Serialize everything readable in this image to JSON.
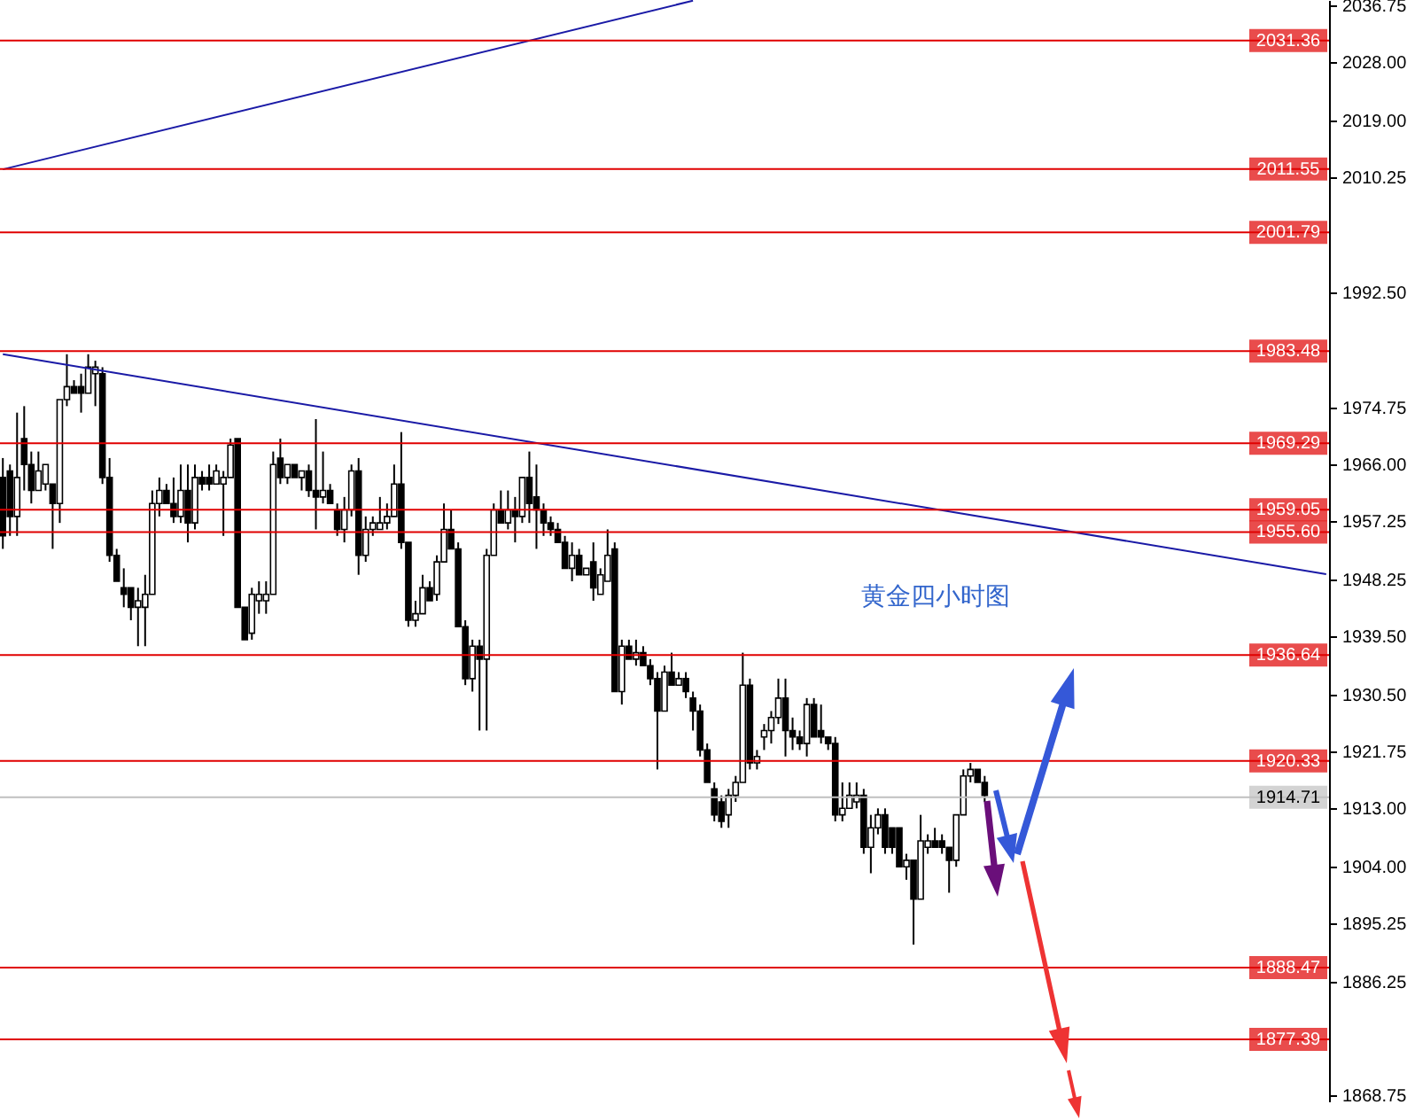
{
  "chart_data": {
    "type": "candlestick",
    "title": "黄金四小时图",
    "categories": [
      null,
      null,
      null,
      null,
      null,
      null,
      null,
      null,
      null,
      null,
      null,
      null,
      null,
      null,
      null,
      null,
      null,
      null,
      null,
      null,
      null,
      null,
      null,
      null,
      null,
      null,
      null,
      null,
      null,
      null,
      null,
      null,
      null,
      null,
      null,
      null,
      null,
      null,
      null,
      null,
      null,
      null,
      null,
      null,
      null,
      null,
      null,
      null,
      null,
      null,
      null,
      null,
      null,
      null,
      null,
      null,
      null,
      null,
      null,
      null,
      null,
      null,
      null,
      null,
      null,
      null,
      null,
      null,
      null,
      null,
      null,
      null,
      null,
      null,
      null,
      null,
      null,
      null,
      null,
      null,
      null,
      null,
      null,
      null,
      null,
      null,
      null,
      null,
      null,
      null,
      null,
      null,
      null,
      null,
      null,
      null,
      null,
      null,
      null,
      null,
      null,
      null,
      null,
      null,
      null,
      null,
      null,
      null,
      null,
      null,
      null,
      null,
      null,
      null,
      null,
      null,
      null,
      null,
      null,
      null,
      null,
      null,
      null,
      null,
      null,
      null,
      null,
      null,
      null,
      null,
      null,
      null,
      null,
      null,
      null,
      null,
      null,
      null,
      null,
      null,
      null,
      null,
      null,
      null,
      null,
      null,
      null,
      null,
      null,
      null,
      null,
      null,
      null,
      null,
      null,
      null,
      null,
      null,
      null,
      null,
      null,
      null,
      null,
      null,
      null,
      null,
      null,
      null,
      null,
      null,
      null,
      null,
      null,
      null,
      null,
      null,
      null,
      null,
      null,
      null,
      null,
      null,
      null,
      null,
      null,
      null,
      null
    ],
    "series": [
      {
        "type": "candlestick",
        "color": "#000000",
        "ohlc": [
          [
            1964,
            1967,
            1953,
            1955
          ],
          [
            1965,
            1966,
            1955,
            1958
          ],
          [
            1958,
            1974,
            1955,
            1964
          ],
          [
            1970,
            1975,
            1962,
            1966
          ],
          [
            1966,
            1968,
            1960,
            1962
          ],
          [
            1962,
            1968,
            1962,
            1965
          ],
          [
            1963,
            1966,
            1962,
            1966
          ],
          [
            1963,
            1963,
            1953,
            1960
          ],
          [
            1960,
            1976,
            1957,
            1976
          ],
          [
            1976,
            1983,
            1975,
            1978
          ],
          [
            1978,
            1979,
            1977,
            1977
          ],
          [
            1978,
            1980,
            1974,
            1977
          ],
          [
            1977,
            1983,
            1977,
            1981
          ],
          [
            1980,
            1982,
            1975,
            1981
          ],
          [
            1980,
            1981,
            1963,
            1964
          ],
          [
            1964,
            1967,
            1951,
            1952
          ],
          [
            1952,
            1953,
            1948,
            1948
          ],
          [
            1947,
            1950,
            1944,
            1946
          ],
          [
            1947,
            1947,
            1942,
            1944
          ],
          [
            1944,
            1947,
            1938,
            1945
          ],
          [
            1944,
            1949,
            1938,
            1946
          ],
          [
            1946,
            1962,
            1946,
            1960
          ],
          [
            1960,
            1964,
            1958,
            1962
          ],
          [
            1962,
            1963,
            1960,
            1960
          ],
          [
            1960,
            1964,
            1957,
            1958
          ],
          [
            1958,
            1966,
            1957,
            1962
          ],
          [
            1962,
            1966,
            1954,
            1957
          ],
          [
            1957,
            1966,
            1956,
            1964
          ],
          [
            1964,
            1965,
            1962,
            1963
          ],
          [
            1964,
            1966,
            1962,
            1963
          ],
          [
            1963,
            1966,
            1963,
            1965
          ],
          [
            1963,
            1965,
            1955,
            1964
          ],
          [
            1964,
            1970,
            1964,
            1969
          ],
          [
            1970,
            1970,
            1944,
            1944
          ],
          [
            1944,
            1944,
            1939,
            1939
          ],
          [
            1940,
            1947,
            1939,
            1946
          ],
          [
            1945,
            1948,
            1943,
            1946
          ],
          [
            1945,
            1948,
            1943,
            1946
          ],
          [
            1946,
            1968,
            1946,
            1966
          ],
          [
            1967,
            1970,
            1963,
            1964
          ],
          [
            1964,
            1966,
            1963,
            1966
          ],
          [
            1966,
            1966,
            1964,
            1964
          ],
          [
            1964,
            1965,
            1962,
            1965
          ],
          [
            1965,
            1966,
            1961,
            1962
          ],
          [
            1962,
            1973,
            1956,
            1961
          ],
          [
            1961,
            1968,
            1960,
            1962
          ],
          [
            1962,
            1963,
            1960,
            1960
          ],
          [
            1959,
            1960,
            1955,
            1956
          ],
          [
            1956,
            1961,
            1954,
            1959
          ],
          [
            1959,
            1966,
            1958,
            1965
          ],
          [
            1965,
            1967,
            1949,
            1952
          ],
          [
            1952,
            1958,
            1951,
            1956
          ],
          [
            1956,
            1958,
            1955,
            1957
          ],
          [
            1956,
            1961,
            1956,
            1957
          ],
          [
            1957,
            1960,
            1956,
            1958
          ],
          [
            1958,
            1966,
            1958,
            1963
          ],
          [
            1963,
            1971,
            1953,
            1954
          ],
          [
            1954,
            1954,
            1941,
            1942
          ],
          [
            1942,
            1945,
            1941,
            1943
          ],
          [
            1943,
            1949,
            1943,
            1947
          ],
          [
            1947,
            1948,
            1945,
            1945
          ],
          [
            1946,
            1952,
            1945,
            1951
          ],
          [
            1951,
            1960,
            1951,
            1956
          ],
          [
            1956,
            1959,
            1953,
            1953
          ],
          [
            1953,
            1954,
            1941,
            1941
          ],
          [
            1941,
            1942,
            1932,
            1933
          ],
          [
            1933,
            1939,
            1931,
            1938
          ],
          [
            1938,
            1939,
            1925,
            1936
          ],
          [
            1936,
            1953,
            1925,
            1952
          ],
          [
            1952,
            1960,
            1952,
            1959
          ],
          [
            1959,
            1962,
            1957,
            1957
          ],
          [
            1957,
            1962,
            1956,
            1959
          ],
          [
            1959,
            1961,
            1954,
            1958
          ],
          [
            1958,
            1964,
            1957,
            1964
          ],
          [
            1964,
            1968,
            1957,
            1960
          ],
          [
            1961,
            1966,
            1953,
            1959
          ],
          [
            1959,
            1960,
            1955,
            1957
          ],
          [
            1957,
            1958,
            1955,
            1956
          ],
          [
            1956,
            1957,
            1954,
            1954
          ],
          [
            1954,
            1955,
            1950,
            1950
          ],
          [
            1950,
            1954,
            1948,
            1952
          ],
          [
            1952,
            1953,
            1949,
            1949
          ],
          [
            1949,
            1950,
            1949,
            1950
          ],
          [
            1951,
            1954,
            1945,
            1947
          ],
          [
            1946,
            1950,
            1946,
            1949
          ],
          [
            1948,
            1956,
            1948,
            1952
          ],
          [
            1953,
            1954,
            1931,
            1931
          ],
          [
            1931,
            1939,
            1929,
            1938
          ],
          [
            1938,
            1939,
            1936,
            1936
          ],
          [
            1936,
            1939,
            1935,
            1937
          ],
          [
            1937,
            1938,
            1935,
            1935
          ],
          [
            1935,
            1936,
            1932,
            1933
          ],
          [
            1933,
            1934,
            1919,
            1928
          ],
          [
            1928,
            1935,
            1928,
            1934
          ],
          [
            1934,
            1937,
            1932,
            1932
          ],
          [
            1932,
            1934,
            1932,
            1933
          ],
          [
            1933,
            1934,
            1930,
            1931
          ],
          [
            1930,
            1931,
            1925,
            1928
          ],
          [
            1928,
            1929,
            1921,
            1922
          ],
          [
            1922,
            1923,
            1917,
            1917
          ],
          [
            1916,
            1917,
            1911,
            1912
          ],
          [
            1914,
            1915,
            1910,
            1911
          ],
          [
            1912,
            1916,
            1910,
            1915
          ],
          [
            1915,
            1918,
            1914,
            1917
          ],
          [
            1917,
            1937,
            1917,
            1932
          ],
          [
            1932,
            1933,
            1919,
            1920
          ],
          [
            1920,
            1922,
            1919,
            1921
          ],
          [
            1924,
            1926,
            1922,
            1925
          ],
          [
            1925,
            1928,
            1923,
            1927
          ],
          [
            1927,
            1933,
            1926,
            1930
          ],
          [
            1930,
            1933,
            1921,
            1925
          ],
          [
            1925,
            1927,
            1922,
            1924
          ],
          [
            1924,
            1925,
            1922,
            1923
          ],
          [
            1923,
            1930,
            1921,
            1929
          ],
          [
            1929,
            1930,
            1924,
            1924
          ],
          [
            1925,
            1929,
            1923,
            1924
          ],
          [
            1924,
            1924,
            1922,
            1923
          ],
          [
            1923,
            1924,
            1911,
            1912
          ],
          [
            1912,
            1917,
            1911,
            1913
          ],
          [
            1913,
            1917,
            1913,
            1915
          ],
          [
            1914,
            1917,
            1913,
            1915
          ],
          [
            1915,
            1916,
            1906,
            1907
          ],
          [
            1907,
            1912,
            1903,
            1910
          ],
          [
            1910,
            1913,
            1909,
            1912
          ],
          [
            1912,
            1913,
            1906,
            1907
          ],
          [
            1910,
            1910,
            1906,
            1907
          ],
          [
            1910,
            1910,
            1904,
            1904
          ],
          [
            1904,
            1906,
            1902,
            1905
          ],
          [
            1905,
            1905,
            1892,
            1899
          ],
          [
            1899,
            1912,
            1899,
            1908
          ],
          [
            1907,
            1909,
            1906,
            1908
          ],
          [
            1908,
            1910,
            1907,
            1907
          ],
          [
            1908,
            1909,
            1906,
            1907
          ],
          [
            1907,
            1907,
            1900,
            1905
          ],
          [
            1905,
            1912,
            1904,
            1912
          ],
          [
            1912,
            1919,
            1912,
            1918
          ],
          [
            1918,
            1920,
            1917,
            1919
          ],
          [
            1919,
            1919,
            1917,
            1917
          ],
          [
            1917,
            1918,
            1914,
            1915
          ],
          null,
          null,
          null,
          null,
          null,
          null,
          null,
          null,
          null,
          null,
          null,
          null,
          null,
          null,
          null,
          null,
          null,
          null,
          null,
          null,
          null,
          null,
          null,
          null,
          null,
          null,
          null,
          null,
          null,
          null,
          null,
          null,
          null,
          null,
          null,
          null,
          null,
          null,
          null,
          null,
          null,
          null,
          null,
          null,
          null,
          null,
          null,
          null
        ]
      },
      {
        "type": "line",
        "color": "#1a1aa6",
        "values": [
          2011.5,
          null,
          null,
          null,
          null,
          null,
          null,
          null,
          null,
          null,
          null,
          null,
          null,
          null,
          null,
          null,
          null,
          null,
          null,
          null,
          null,
          null,
          null,
          null,
          null,
          null,
          null,
          null,
          null,
          null,
          null,
          null,
          null,
          null,
          null,
          null,
          null,
          null,
          null,
          null,
          null,
          null,
          null,
          null,
          null,
          null,
          null,
          null,
          null,
          null,
          null,
          null,
          null,
          null,
          null,
          null,
          null,
          null,
          null,
          null,
          null,
          null,
          null,
          null,
          null,
          null,
          null,
          null,
          null,
          null,
          null,
          null,
          null,
          null,
          null,
          null,
          null,
          null,
          null,
          null,
          null,
          null,
          null,
          null,
          null,
          null,
          null,
          null,
          null,
          null,
          null,
          null,
          null,
          null,
          null,
          null,
          null,
          2037.5,
          null,
          null,
          null,
          null,
          null,
          null,
          null,
          null,
          null,
          null,
          null,
          null,
          null,
          null,
          null,
          null,
          null,
          null,
          null,
          null,
          null,
          null,
          null,
          null,
          null,
          null,
          null,
          null,
          null,
          null,
          null,
          null,
          null,
          null,
          null,
          null,
          null,
          null,
          null,
          null,
          null,
          null,
          null,
          null,
          null,
          null,
          null,
          null,
          null,
          null,
          null,
          null,
          null,
          null,
          null,
          null,
          null,
          null,
          null,
          null,
          null,
          null,
          null,
          null,
          null,
          null,
          null,
          null,
          null,
          null,
          null,
          null,
          null,
          null,
          null,
          null,
          null,
          null,
          null,
          null,
          null,
          null,
          null,
          null,
          null,
          null,
          null,
          null,
          null
        ]
      },
      {
        "type": "line",
        "color": "#1a1aa6",
        "values": [
          1983.0,
          null,
          null,
          null,
          null,
          null,
          null,
          null,
          null,
          null,
          null,
          null,
          null,
          null,
          null,
          null,
          null,
          null,
          null,
          null,
          null,
          null,
          null,
          null,
          null,
          null,
          null,
          null,
          null,
          null,
          null,
          null,
          null,
          null,
          null,
          null,
          null,
          null,
          null,
          null,
          null,
          null,
          null,
          null,
          null,
          null,
          null,
          null,
          null,
          null,
          null,
          null,
          null,
          null,
          null,
          null,
          null,
          null,
          null,
          null,
          null,
          null,
          null,
          null,
          null,
          null,
          null,
          null,
          null,
          null,
          null,
          null,
          null,
          null,
          null,
          null,
          null,
          null,
          null,
          null,
          null,
          null,
          null,
          null,
          null,
          null,
          null,
          null,
          null,
          null,
          null,
          null,
          null,
          null,
          null,
          null,
          null,
          null,
          null,
          null,
          null,
          null,
          null,
          null,
          null,
          null,
          null,
          null,
          null,
          null,
          null,
          null,
          null,
          null,
          null,
          null,
          null,
          null,
          null,
          null,
          null,
          null,
          null,
          null,
          null,
          null,
          null,
          null,
          null,
          null,
          null,
          null,
          null,
          null,
          null,
          null,
          null,
          null,
          null,
          null,
          null,
          null,
          null,
          null,
          null,
          null,
          null,
          null,
          null,
          null,
          null,
          null,
          null,
          null,
          null,
          null,
          null,
          null,
          null,
          null,
          null,
          null,
          null,
          null,
          null,
          null,
          null,
          null,
          null,
          null,
          null,
          null,
          null,
          null,
          null,
          null,
          null,
          null,
          null,
          null,
          null,
          null,
          null,
          null,
          null,
          null,
          1949.1
        ]
      }
    ],
    "ylim": [
      1867.7,
      2037.6
    ],
    "yticks": [
      2036.75,
      {
        "value": 2028,
        "label": "2028.00"
      },
      {
        "value": 2019,
        "label": "2019.00"
      },
      2010.25,
      {
        "value": 1992.5,
        "label": "1992.50"
      },
      1974.75,
      {
        "value": 1966,
        "label": "1966.00"
      },
      1957.25,
      1948.25,
      {
        "value": 1939.5,
        "label": "1939.50"
      },
      {
        "value": 1930.5,
        "label": "1930.50"
      },
      1921.75,
      {
        "value": 1913,
        "label": "1913.00"
      },
      {
        "value": 1904,
        "label": "1904.00"
      },
      1895.25,
      1886.25,
      1868.75
    ],
    "tick_labels": "y",
    "ref_lines": [
      {
        "axis": "y",
        "value": 2031.36,
        "label": "2031.36",
        "color": "#e00000"
      },
      {
        "axis": "y",
        "value": 2011.55,
        "label": "2011.55",
        "color": "#e00000"
      },
      {
        "axis": "y",
        "value": 2001.79,
        "label": "2001.79",
        "color": "#e00000"
      },
      {
        "axis": "y",
        "value": 1983.48,
        "label": "1983.48",
        "color": "#e00000"
      },
      {
        "axis": "y",
        "value": 1969.29,
        "label": "1969.29",
        "color": "#e00000"
      },
      {
        "axis": "y",
        "value": 1959.05,
        "label": "1959.05",
        "color": "#e00000"
      },
      {
        "axis": "y",
        "value": 1955.6,
        "label": "1955.60",
        "color": "#e00000"
      },
      {
        "axis": "y",
        "value": 1936.64,
        "label": "1936.64",
        "color": "#e00000"
      },
      {
        "axis": "y",
        "value": 1920.33,
        "label": "1920.33",
        "color": "#e00000"
      },
      {
        "axis": "y",
        "value": 1914.71,
        "label": "1914.71",
        "color": "#c0c0c0"
      },
      {
        "axis": "y",
        "value": 1888.47,
        "label": "1888.47",
        "color": "#e00000"
      },
      {
        "axis": "y",
        "value": 1877.39,
        "label": "1877.39",
        "color": "#e00000"
      }
    ]
  }
}
